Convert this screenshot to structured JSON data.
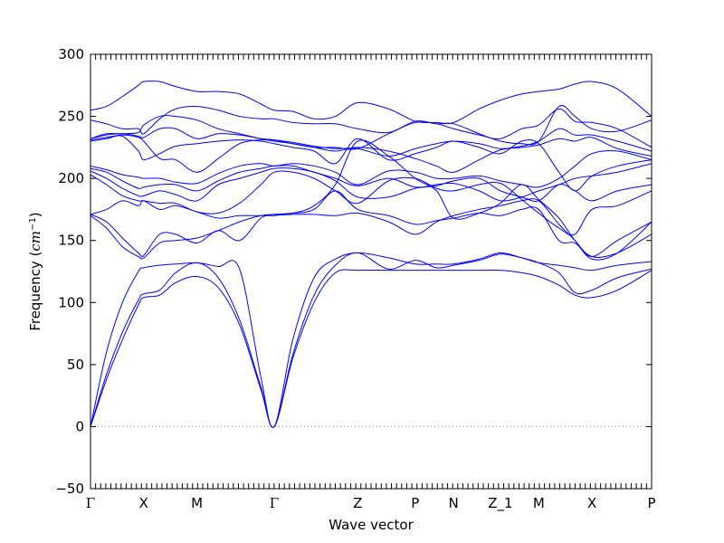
{
  "chart_data": {
    "type": "line",
    "title": "",
    "xlabel": "Wave vector",
    "ylabel_prefix": "Frequency (",
    "ylabel_math": "cm",
    "ylabel_exp": "−1",
    "ylabel_suffix": ")",
    "ylim": [
      -50,
      300
    ],
    "yticks": [
      -50,
      0,
      50,
      100,
      150,
      200,
      250,
      300
    ],
    "xlim": [
      0,
      10.54
    ],
    "path_points": [
      {
        "label": "Γ",
        "x": 0
      },
      {
        "label": "X",
        "x": 1.0
      },
      {
        "label": "M",
        "x": 2.0
      },
      {
        "label": "Γ",
        "x": 3.45
      },
      {
        "label": "Z",
        "x": 5.02
      },
      {
        "label": "P",
        "x": 6.1
      },
      {
        "label": "N",
        "x": 6.82
      },
      {
        "label": "Z_1",
        "x": 7.7
      },
      {
        "label": "M",
        "x": 8.42
      },
      {
        "label": "X",
        "x": 9.42
      },
      {
        "label": "P",
        "x": 10.54
      }
    ],
    "zero_line": true,
    "line_color": "#0000ff",
    "zero_line_color": "#808080",
    "series": [
      {
        "x": [
          0,
          0.3,
          0.6,
          0.9,
          1.0,
          1.3,
          1.6,
          2.0,
          2.4,
          2.8,
          3.2,
          3.45,
          3.8,
          4.2,
          4.6,
          5.02,
          5.6,
          6.1,
          6.5,
          6.82,
          7.3,
          7.7,
          8.1,
          8.42,
          8.8,
          9.1,
          9.42,
          9.9,
          10.54
        ],
        "y": [
          0,
          38,
          70,
          98,
          104,
          106,
          116,
          121,
          112,
          82,
          30,
          0,
          55,
          100,
          124,
          126,
          126,
          126,
          126,
          126,
          126,
          126,
          124,
          121,
          114,
          106,
          104,
          110,
          126
        ]
      },
      {
        "x": [
          0,
          0.3,
          0.6,
          0.9,
          1.0,
          1.3,
          1.6,
          2.0,
          2.4,
          2.8,
          3.2,
          3.45,
          3.8,
          4.2,
          4.6,
          5.02,
          5.6,
          6.1,
          6.5,
          6.82,
          7.3,
          7.7,
          8.1,
          8.42,
          8.8,
          9.1,
          9.42,
          9.9,
          10.54
        ],
        "y": [
          0,
          42,
          76,
          102,
          107,
          110,
          124,
          132,
          120,
          86,
          32,
          0,
          58,
          106,
          130,
          140,
          127,
          134,
          128,
          130,
          134,
          139,
          136,
          132,
          124,
          108,
          110,
          120,
          127
        ]
      },
      {
        "x": [
          0,
          0.3,
          0.6,
          0.9,
          1.0,
          1.3,
          1.6,
          2.0,
          2.4,
          2.8,
          3.2,
          3.45,
          3.8,
          4.2,
          4.6,
          5.02,
          5.6,
          6.1,
          6.5,
          6.82,
          7.3,
          7.7,
          8.1,
          8.42,
          8.8,
          9.1,
          9.42,
          9.9,
          10.54
        ],
        "y": [
          0,
          60,
          100,
          125,
          128,
          130,
          131,
          132,
          129,
          127,
          40,
          0,
          70,
          120,
          135,
          140,
          136,
          131,
          131,
          131,
          135,
          140,
          136,
          132,
          130,
          128,
          126,
          130,
          133
        ]
      },
      {
        "x": [
          0,
          0.3,
          0.6,
          0.9,
          1.0,
          1.3,
          1.6,
          2.0,
          2.4,
          2.8,
          3.2,
          3.45,
          3.8,
          4.2,
          4.6,
          5.02,
          5.6,
          6.1,
          6.5,
          6.82,
          7.3,
          7.7,
          8.1,
          8.42,
          8.8,
          9.1,
          9.42,
          9.9,
          10.54
        ],
        "y": [
          170,
          160,
          145,
          137,
          136,
          148,
          150,
          152,
          158,
          165,
          170,
          171,
          172,
          178,
          195,
          230,
          218,
          200,
          190,
          168,
          172,
          180,
          195,
          183,
          168,
          150,
          137,
          140,
          155
        ]
      },
      {
        "x": [
          0,
          0.3,
          0.6,
          0.9,
          1.0,
          1.3,
          1.6,
          2.0,
          2.4,
          2.8,
          3.2,
          3.45,
          3.8,
          4.2,
          4.6,
          5.02,
          5.6,
          6.1,
          6.5,
          6.82,
          7.3,
          7.7,
          8.1,
          8.42,
          8.8,
          9.1,
          9.42,
          9.9,
          10.54
        ],
        "y": [
          171,
          165,
          152,
          140,
          138,
          155,
          155,
          148,
          158,
          150,
          168,
          170,
          171,
          171,
          170,
          172,
          165,
          155,
          165,
          170,
          175,
          178,
          182,
          182,
          163,
          150,
          135,
          140,
          165
        ]
      },
      {
        "x": [
          0,
          0.3,
          0.6,
          0.9,
          1.0,
          1.3,
          1.6,
          2.0,
          2.4,
          2.8,
          3.2,
          3.45,
          3.8,
          4.2,
          4.6,
          5.02,
          5.6,
          6.1,
          6.5,
          6.82,
          7.3,
          7.7,
          8.1,
          8.42,
          8.8,
          9.1,
          9.42,
          9.9,
          10.54
        ],
        "y": [
          171,
          175,
          182,
          178,
          182,
          175,
          178,
          173,
          168,
          170,
          170,
          171,
          172,
          175,
          190,
          175,
          170,
          163,
          166,
          168,
          172,
          170,
          175,
          175,
          150,
          148,
          137,
          150,
          165
        ]
      },
      {
        "x": [
          0,
          0.3,
          0.6,
          0.9,
          1.0,
          1.3,
          1.6,
          2.0,
          2.4,
          2.8,
          3.2,
          3.45,
          3.8,
          4.2,
          4.6,
          5.02,
          5.6,
          6.1,
          6.5,
          6.82,
          7.3,
          7.7,
          8.1,
          8.42,
          8.8,
          9.1,
          9.42,
          9.9,
          10.54
        ],
        "y": [
          203,
          195,
          186,
          182,
          182,
          180,
          180,
          173,
          172,
          180,
          195,
          205,
          205,
          200,
          190,
          180,
          198,
          200,
          192,
          190,
          195,
          196,
          183,
          172,
          160,
          155,
          175,
          178,
          190
        ]
      },
      {
        "x": [
          0,
          0.3,
          0.6,
          0.9,
          1.0,
          1.3,
          1.6,
          2.0,
          2.4,
          2.8,
          3.2,
          3.45,
          3.8,
          4.2,
          4.6,
          5.02,
          5.6,
          6.1,
          6.5,
          6.82,
          7.3,
          7.7,
          8.1,
          8.42,
          8.8,
          9.1,
          9.42,
          9.9,
          10.54
        ],
        "y": [
          206,
          200,
          192,
          186,
          186,
          190,
          187,
          182,
          195,
          200,
          205,
          208,
          208,
          205,
          198,
          185,
          185,
          192,
          194,
          198,
          200,
          190,
          185,
          182,
          195,
          190,
          182,
          190,
          195
        ]
      },
      {
        "x": [
          0,
          0.3,
          0.6,
          0.9,
          1.0,
          1.3,
          1.6,
          2.0,
          2.4,
          2.8,
          3.2,
          3.45,
          3.8,
          4.2,
          4.6,
          5.02,
          5.6,
          6.1,
          6.5,
          6.82,
          7.3,
          7.7,
          8.1,
          8.42,
          8.8,
          9.1,
          9.42,
          9.9,
          10.54
        ],
        "y": [
          208,
          205,
          198,
          192,
          193,
          195,
          195,
          190,
          198,
          205,
          208,
          210,
          210,
          205,
          200,
          194,
          200,
          193,
          195,
          196,
          190,
          182,
          185,
          190,
          195,
          200,
          202,
          205,
          212
        ]
      },
      {
        "x": [
          0,
          0.3,
          0.6,
          0.9,
          1.0,
          1.3,
          1.6,
          2.0,
          2.4,
          2.8,
          3.2,
          3.45,
          3.8,
          4.2,
          4.6,
          5.02,
          5.6,
          6.1,
          6.5,
          6.82,
          7.3,
          7.7,
          8.1,
          8.42,
          8.8,
          9.1,
          9.42,
          9.9,
          10.54
        ],
        "y": [
          210,
          207,
          203,
          201,
          200,
          200,
          197,
          196,
          204,
          210,
          212,
          210,
          212,
          210,
          205,
          195,
          206,
          205,
          200,
          200,
          202,
          198,
          195,
          193,
          200,
          210,
          220,
          222,
          215
        ]
      },
      {
        "x": [
          0,
          0.3,
          0.6,
          0.9,
          1.0,
          1.3,
          1.6,
          2.0,
          2.4,
          2.8,
          3.2,
          3.45,
          3.8,
          4.2,
          4.6,
          5.02,
          5.6,
          6.1,
          6.5,
          6.82,
          7.3,
          7.7,
          8.1,
          8.42,
          8.8,
          9.1,
          9.42,
          9.9,
          10.54
        ],
        "y": [
          230,
          232,
          234,
          222,
          215,
          220,
          226,
          228,
          230,
          231,
          230,
          228,
          225,
          222,
          212,
          232,
          215,
          220,
          225,
          230,
          225,
          220,
          230,
          228,
          205,
          190,
          202,
          210,
          215
        ]
      },
      {
        "x": [
          0,
          0.3,
          0.6,
          0.9,
          1.0,
          1.3,
          1.6,
          2.0,
          2.4,
          2.8,
          3.2,
          3.45,
          3.8,
          4.2,
          4.6,
          5.02,
          5.6,
          6.1,
          6.5,
          6.82,
          7.3,
          7.7,
          8.1,
          8.42,
          8.8,
          9.1,
          9.42,
          9.9,
          10.54
        ],
        "y": [
          231,
          233,
          235,
          233,
          230,
          216,
          215,
          205,
          216,
          228,
          231,
          230,
          228,
          225,
          222,
          225,
          222,
          216,
          210,
          205,
          215,
          223,
          225,
          227,
          232,
          230,
          233,
          224,
          218
        ]
      },
      {
        "x": [
          0,
          0.3,
          0.6,
          0.9,
          1.0,
          1.3,
          1.6,
          2.0,
          2.4,
          2.8,
          3.2,
          3.45,
          3.8,
          4.2,
          4.6,
          5.02,
          5.6,
          6.1,
          6.5,
          6.82,
          7.3,
          7.7,
          8.1,
          8.42,
          8.8,
          9.1,
          9.42,
          9.9,
          10.54
        ],
        "y": [
          232,
          235,
          236,
          234,
          233,
          240,
          240,
          232,
          236,
          235,
          232,
          231,
          229,
          226,
          224,
          224,
          218,
          224,
          228,
          230,
          228,
          224,
          226,
          230,
          240,
          235,
          235,
          230,
          222
        ]
      },
      {
        "x": [
          0,
          0.3,
          0.6,
          0.9,
          1.0,
          1.3,
          1.6,
          2.0,
          2.4,
          2.8,
          3.2,
          3.45,
          3.8,
          4.2,
          4.6,
          5.02,
          5.6,
          6.1,
          6.5,
          6.82,
          7.3,
          7.7,
          8.1,
          8.42,
          8.8,
          9.1,
          9.42,
          9.9,
          10.54
        ],
        "y": [
          232,
          236,
          236,
          237,
          243,
          250,
          250,
          247,
          240,
          236,
          232,
          231,
          228,
          225,
          225,
          224,
          236,
          245,
          244,
          240,
          235,
          232,
          240,
          243,
          256,
          246,
          245,
          240,
          225
        ]
      },
      {
        "x": [
          0,
          0.3,
          0.6,
          0.9,
          1.0,
          1.3,
          1.6,
          2.0,
          2.4,
          2.8,
          3.2,
          3.45,
          3.8,
          4.2,
          4.6,
          5.02,
          5.6,
          6.1,
          6.5,
          6.82,
          7.3,
          7.7,
          8.1,
          8.42,
          8.8,
          9.1,
          9.42,
          9.9,
          10.54
        ],
        "y": [
          247,
          244,
          240,
          240,
          236,
          248,
          256,
          258,
          255,
          250,
          248,
          248,
          245,
          244,
          244,
          240,
          237,
          246,
          244,
          244,
          236,
          230,
          228,
          230,
          258,
          250,
          240,
          238,
          247
        ]
      },
      {
        "x": [
          0,
          0.3,
          0.6,
          0.9,
          1.0,
          1.3,
          1.6,
          2.0,
          2.4,
          2.8,
          3.2,
          3.45,
          3.8,
          4.2,
          4.6,
          5.02,
          5.6,
          6.1,
          6.5,
          6.82,
          7.3,
          7.7,
          8.1,
          8.42,
          8.8,
          9.1,
          9.42,
          9.9,
          10.54
        ],
        "y": [
          255,
          258,
          266,
          275,
          278,
          278,
          274,
          270,
          270,
          268,
          260,
          255,
          254,
          248,
          250,
          261,
          256,
          246,
          245,
          245,
          256,
          263,
          268,
          270,
          272,
          276,
          278,
          272,
          250
        ]
      }
    ]
  }
}
